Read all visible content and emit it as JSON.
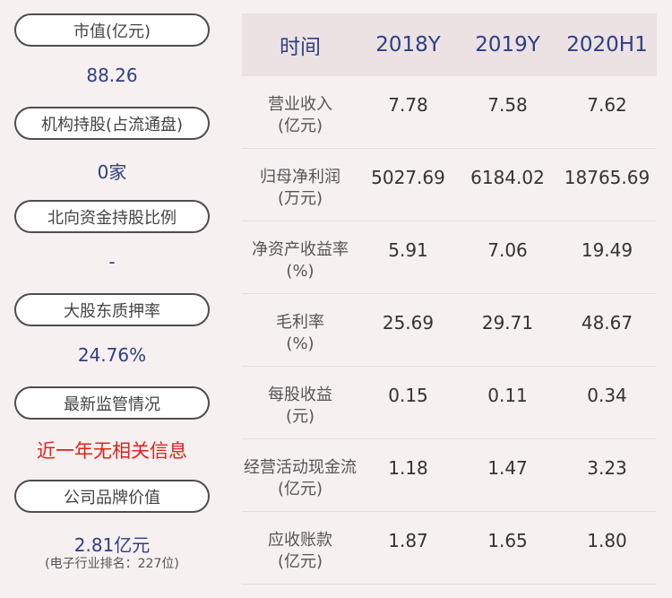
{
  "left": {
    "items": [
      {
        "label": "市值(亿元)",
        "value": "88.26"
      },
      {
        "label": "机构持股(占流通盘)",
        "value": "0家"
      },
      {
        "label": "北向资金持股比例",
        "value": "-"
      },
      {
        "label": "大股东质押率",
        "value": "24.76%"
      },
      {
        "label": "最新监管情况",
        "value": "近一年无相关信息"
      },
      {
        "label": "公司品牌价值",
        "value": "2.81亿元",
        "sub": "(电子行业排名：227位)"
      }
    ]
  },
  "table": {
    "headers": [
      "时间",
      "2018Y",
      "2019Y",
      "2020H1"
    ],
    "rows": [
      {
        "label1": "营业收入",
        "label2": "(亿元)",
        "values": [
          "7.78",
          "7.58",
          "7.62"
        ]
      },
      {
        "label1": "归母净利润",
        "label2": "(万元)",
        "values": [
          "5027.69",
          "6184.02",
          "18765.69"
        ]
      },
      {
        "label1": "净资产收益率",
        "label2": "(%)",
        "values": [
          "5.91",
          "7.06",
          "19.49"
        ]
      },
      {
        "label1": "毛利率",
        "label2": "(%)",
        "values": [
          "25.69",
          "29.71",
          "48.67"
        ]
      },
      {
        "label1": "每股收益",
        "label2": "(元)",
        "values": [
          "0.15",
          "0.11",
          "0.34"
        ]
      },
      {
        "label1": "经营活动现金流",
        "label2": "(亿元)",
        "values": [
          "1.18",
          "1.47",
          "3.23"
        ]
      },
      {
        "label1": "应收账款",
        "label2": "(亿元)",
        "values": [
          "1.87",
          "1.65",
          "1.80"
        ]
      }
    ]
  },
  "colors": {
    "background": "#f7f0f1",
    "value_text": "#2d3f84",
    "alert_text": "#e0221b",
    "header_bg": "#ece2e4"
  }
}
